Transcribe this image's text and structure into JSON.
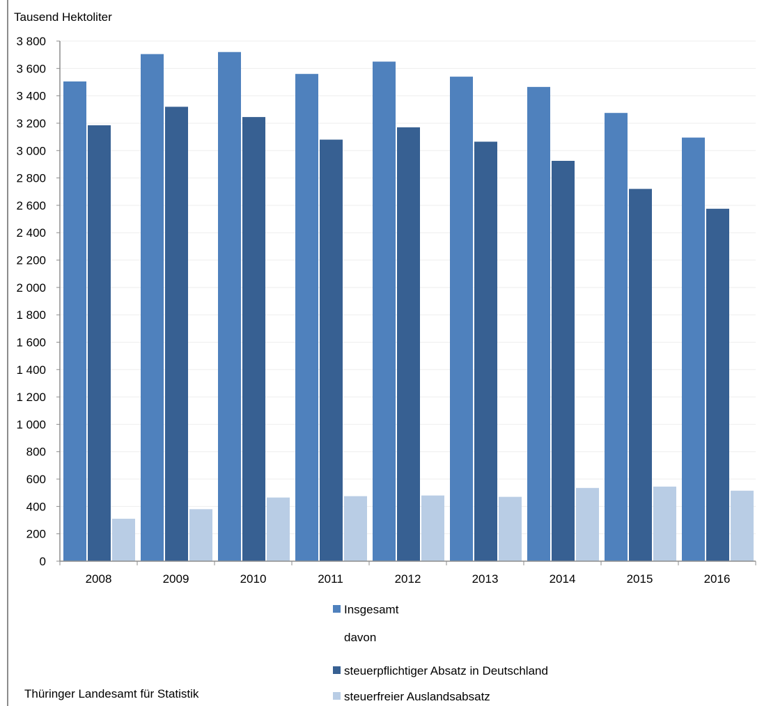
{
  "chart_data": {
    "type": "bar",
    "ylabel": "Tausend Hektoliter",
    "ylim": [
      0,
      3800
    ],
    "yticks": [
      0,
      200,
      400,
      600,
      800,
      1000,
      1200,
      1400,
      1600,
      1800,
      2000,
      2200,
      2400,
      2600,
      2800,
      3000,
      3200,
      3400,
      3600,
      3800
    ],
    "ytick_labels": [
      "0",
      "200",
      "400",
      "600",
      "800",
      "1 000",
      "1 200",
      "1 400",
      "1 600",
      "1 800",
      "2 000",
      "2 200",
      "2 400",
      "2 600",
      "2 800",
      "3 000",
      "3 200",
      "3 400",
      "3 600",
      "3 800"
    ],
    "categories": [
      "2008",
      "2009",
      "2010",
      "2011",
      "2012",
      "2013",
      "2014",
      "2015",
      "2016"
    ],
    "series": [
      {
        "name": "Insgesamt",
        "color": "#4f81bd",
        "values": [
          3505,
          3705,
          3720,
          3560,
          3650,
          3540,
          3465,
          3275,
          3095
        ]
      },
      {
        "name": "steuerpflichtiger Absatz in Deutschland",
        "color": "#376092",
        "values": [
          3185,
          3320,
          3245,
          3080,
          3170,
          3065,
          2925,
          2720,
          2575
        ]
      },
      {
        "name": "steuerfreier Auslandsabsatz",
        "color": "#b9cde5",
        "values": [
          310,
          380,
          465,
          475,
          480,
          470,
          535,
          545,
          515
        ]
      }
    ],
    "grid": true,
    "legend_position": "bottom"
  },
  "legend": {
    "item1": "Insgesamt",
    "subheading": "davon",
    "item2": "steuerpflichtiger Absatz in Deutschland",
    "item3": "steuerfreier Auslandsabsatz"
  },
  "source": "Thüringer Landesamt für Statistik"
}
